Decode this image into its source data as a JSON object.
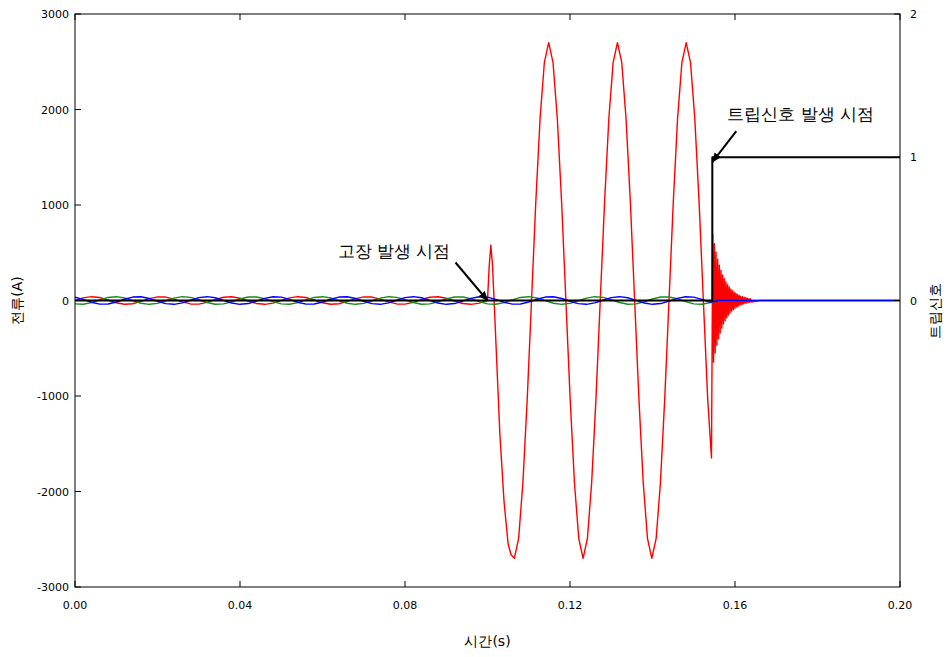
{
  "chart_data": {
    "type": "line",
    "x_label": "시간(s)",
    "y_label": "전류(A)",
    "y2_label": "트립신호",
    "xlim": [
      0,
      0.2
    ],
    "xticks": [
      {
        "value": 0,
        "label": "0.00"
      },
      {
        "value": 0.04,
        "label": "0.04"
      },
      {
        "value": 0.08,
        "label": "0.08"
      },
      {
        "value": 0.12,
        "label": "0.12"
      },
      {
        "value": 0.16,
        "label": "0.16"
      },
      {
        "value": 0.2,
        "label": "0.20"
      }
    ],
    "ylim": [
      -3000,
      3000
    ],
    "yticks": [
      -3000,
      -2000,
      -1000,
      0,
      1000,
      2000,
      3000
    ],
    "y2lim": [
      -2,
      2
    ],
    "y2ticks": [
      0,
      1,
      2
    ],
    "grid": false,
    "annotations": [
      {
        "text": "고장 발생 시점",
        "x": 0.1,
        "y": 0
      },
      {
        "text": "트립신호 발생 시점",
        "x": 0.1545,
        "y": 1450
      }
    ],
    "series": [
      {
        "color": "#ff0000",
        "x": [
          0,
          0.002,
          0.004,
          0.006,
          0.008,
          0.01,
          0.012,
          0.014,
          0.016,
          0.018,
          0.02,
          0.022,
          0.024,
          0.026,
          0.028,
          0.03,
          0.032,
          0.034,
          0.036,
          0.038,
          0.04,
          0.042,
          0.044,
          0.046,
          0.048,
          0.05,
          0.052,
          0.054,
          0.056,
          0.058,
          0.06,
          0.062,
          0.064,
          0.066,
          0.068,
          0.07,
          0.072,
          0.074,
          0.076,
          0.078,
          0.08,
          0.082,
          0.084,
          0.086,
          0.088,
          0.09,
          0.092,
          0.094,
          0.096,
          0.098,
          0.1,
          0.1004,
          0.1008,
          0.1012,
          0.1016,
          0.1022,
          0.103,
          0.104,
          0.105,
          0.1057,
          0.1065,
          0.10754,
          0.10858,
          0.10963,
          0.11067,
          0.11171,
          0.11275,
          0.11379,
          0.11483,
          0.11588,
          0.11692,
          0.11796,
          0.119,
          0.12004,
          0.12108,
          0.12213,
          0.12317,
          0.12421,
          0.12525,
          0.12629,
          0.12733,
          0.12838,
          0.12942,
          0.13046,
          0.1315,
          0.13254,
          0.13358,
          0.13463,
          0.13567,
          0.13671,
          0.13775,
          0.13879,
          0.13983,
          0.14088,
          0.14192,
          0.14296,
          0.144,
          0.14504,
          0.14608,
          0.14713,
          0.14817,
          0.14921,
          0.15025,
          0.15129,
          0.15233,
          0.15338,
          0.1543,
          0.1546,
          0.1548,
          0.155,
          0.1552,
          0.1554,
          0.1556,
          0.1558,
          0.156,
          0.1562,
          0.1564,
          0.1566,
          0.1568,
          0.157,
          0.1572,
          0.1574,
          0.1576,
          0.1578,
          0.158,
          0.1582,
          0.1584,
          0.1586,
          0.1588,
          0.159,
          0.1592,
          0.1594,
          0.1596,
          0.1598,
          0.16,
          0.1602,
          0.1604,
          0.1606,
          0.1608,
          0.161,
          0.1612,
          0.1614,
          0.1616,
          0.1618,
          0.162,
          0.1622,
          0.1624,
          0.1626,
          0.1628,
          0.163,
          0.1632,
          0.1634,
          0.1636,
          0.1638,
          0.164,
          0.166,
          0.2
        ],
        "values": [
          0,
          27,
          40,
          31,
          5,
          -24,
          -39,
          -34,
          -10,
          19,
          38,
          36,
          15,
          -15,
          -36,
          -38,
          -19,
          10,
          34,
          39,
          24,
          -5,
          -31,
          -40,
          -27,
          0,
          27,
          40,
          31,
          5,
          -24,
          -39,
          -34,
          -10,
          19,
          38,
          36,
          15,
          -15,
          -36,
          -38,
          -19,
          10,
          34,
          39,
          24,
          -5,
          -31,
          -40,
          -27,
          0,
          350,
          580,
          380,
          0,
          -600,
          -1400,
          -2100,
          -2550,
          -2660,
          -2700,
          -2494,
          -1909,
          -1033,
          0,
          1033,
          1909,
          2494,
          2700,
          2494,
          1909,
          1033,
          0,
          -1033,
          -1909,
          -2494,
          -2700,
          -2494,
          -1909,
          -1033,
          0,
          1033,
          1909,
          2494,
          2700,
          2494,
          1909,
          1033,
          0,
          -1033,
          -1909,
          -2494,
          -2700,
          -2494,
          -1909,
          -1033,
          0,
          1033,
          1909,
          2494,
          2700,
          2494,
          1909,
          1033,
          0,
          -1033,
          -1650,
          700,
          -646,
          596,
          -550,
          508,
          -469,
          433,
          -400,
          369,
          -341,
          314,
          -290,
          268,
          -247,
          228,
          -211,
          195,
          -180,
          166,
          -153,
          141,
          -130,
          120,
          -111,
          103,
          -95,
          87,
          -81,
          75,
          -69,
          64,
          -59,
          54,
          -50,
          46,
          -43,
          39,
          -36,
          34,
          -31,
          29,
          -26,
          24,
          -22,
          20,
          -19,
          17,
          -16,
          0,
          0
        ]
      },
      {
        "color": "#1a8a1a",
        "x": [
          0,
          0.002,
          0.004,
          0.006,
          0.008,
          0.01,
          0.012,
          0.014,
          0.016,
          0.018,
          0.02,
          0.022,
          0.024,
          0.026,
          0.028,
          0.03,
          0.032,
          0.034,
          0.036,
          0.038,
          0.04,
          0.042,
          0.044,
          0.046,
          0.048,
          0.05,
          0.052,
          0.054,
          0.056,
          0.058,
          0.06,
          0.062,
          0.064,
          0.066,
          0.068,
          0.07,
          0.072,
          0.074,
          0.076,
          0.078,
          0.08,
          0.082,
          0.084,
          0.086,
          0.088,
          0.09,
          0.092,
          0.094,
          0.096,
          0.098,
          0.1,
          0.102,
          0.104,
          0.106,
          0.108,
          0.11,
          0.112,
          0.114,
          0.116,
          0.118,
          0.12,
          0.122,
          0.124,
          0.126,
          0.128,
          0.13,
          0.132,
          0.134,
          0.136,
          0.138,
          0.14,
          0.142,
          0.144,
          0.146,
          0.148,
          0.15,
          0.152,
          0.154,
          0.156,
          0.2
        ],
        "values": [
          -35,
          -39,
          -22,
          7,
          32,
          40,
          26,
          -2,
          -29,
          -40,
          -30,
          -3,
          25,
          40,
          33,
          8,
          -21,
          -39,
          -35,
          -13,
          16,
          37,
          37,
          18,
          -12,
          -35,
          -39,
          -22,
          7,
          32,
          40,
          26,
          -2,
          -29,
          -40,
          -30,
          -3,
          25,
          40,
          33,
          8,
          -21,
          -39,
          -35,
          -13,
          16,
          37,
          37,
          18,
          -12,
          -35,
          -39,
          -22,
          7,
          32,
          40,
          26,
          -2,
          -29,
          -40,
          -30,
          -3,
          25,
          40,
          33,
          8,
          -21,
          -39,
          -35,
          -13,
          16,
          37,
          37,
          18,
          -12,
          -35,
          -39,
          -22,
          0,
          0
        ]
      },
      {
        "color": "#0000ff",
        "x": [
          0,
          0.002,
          0.004,
          0.006,
          0.008,
          0.01,
          0.012,
          0.014,
          0.016,
          0.018,
          0.02,
          0.022,
          0.024,
          0.026,
          0.028,
          0.03,
          0.032,
          0.034,
          0.036,
          0.038,
          0.04,
          0.042,
          0.044,
          0.046,
          0.048,
          0.05,
          0.052,
          0.054,
          0.056,
          0.058,
          0.06,
          0.062,
          0.064,
          0.066,
          0.068,
          0.07,
          0.072,
          0.074,
          0.076,
          0.078,
          0.08,
          0.082,
          0.084,
          0.086,
          0.088,
          0.09,
          0.092,
          0.094,
          0.096,
          0.098,
          0.1,
          0.102,
          0.104,
          0.106,
          0.108,
          0.11,
          0.112,
          0.114,
          0.116,
          0.118,
          0.12,
          0.122,
          0.124,
          0.126,
          0.128,
          0.13,
          0.132,
          0.134,
          0.136,
          0.138,
          0.14,
          0.142,
          0.144,
          0.146,
          0.148,
          0.15,
          0.152,
          0.154,
          0.156,
          0.2
        ],
        "values": [
          35,
          12,
          -18,
          -38,
          -37,
          -16,
          13,
          36,
          39,
          21,
          -8,
          -33,
          -40,
          -25,
          3,
          30,
          40,
          29,
          1,
          -26,
          -40,
          -32,
          -6,
          22,
          39,
          35,
          12,
          -18,
          -38,
          -37,
          -16,
          13,
          36,
          39,
          21,
          -8,
          -33,
          -40,
          -25,
          3,
          30,
          40,
          29,
          1,
          -26,
          -40,
          -32,
          -6,
          22,
          39,
          35,
          12,
          -18,
          -38,
          -37,
          -16,
          13,
          36,
          39,
          21,
          -8,
          -33,
          -40,
          -25,
          3,
          30,
          40,
          29,
          1,
          -26,
          -40,
          -32,
          -6,
          22,
          39,
          35,
          12,
          -18,
          0,
          0
        ]
      },
      {
        "color": "#000000",
        "axis": "y2",
        "x": [
          0,
          0.1545,
          0.1545,
          0.2
        ],
        "values": [
          0,
          0,
          1,
          1
        ]
      }
    ]
  }
}
